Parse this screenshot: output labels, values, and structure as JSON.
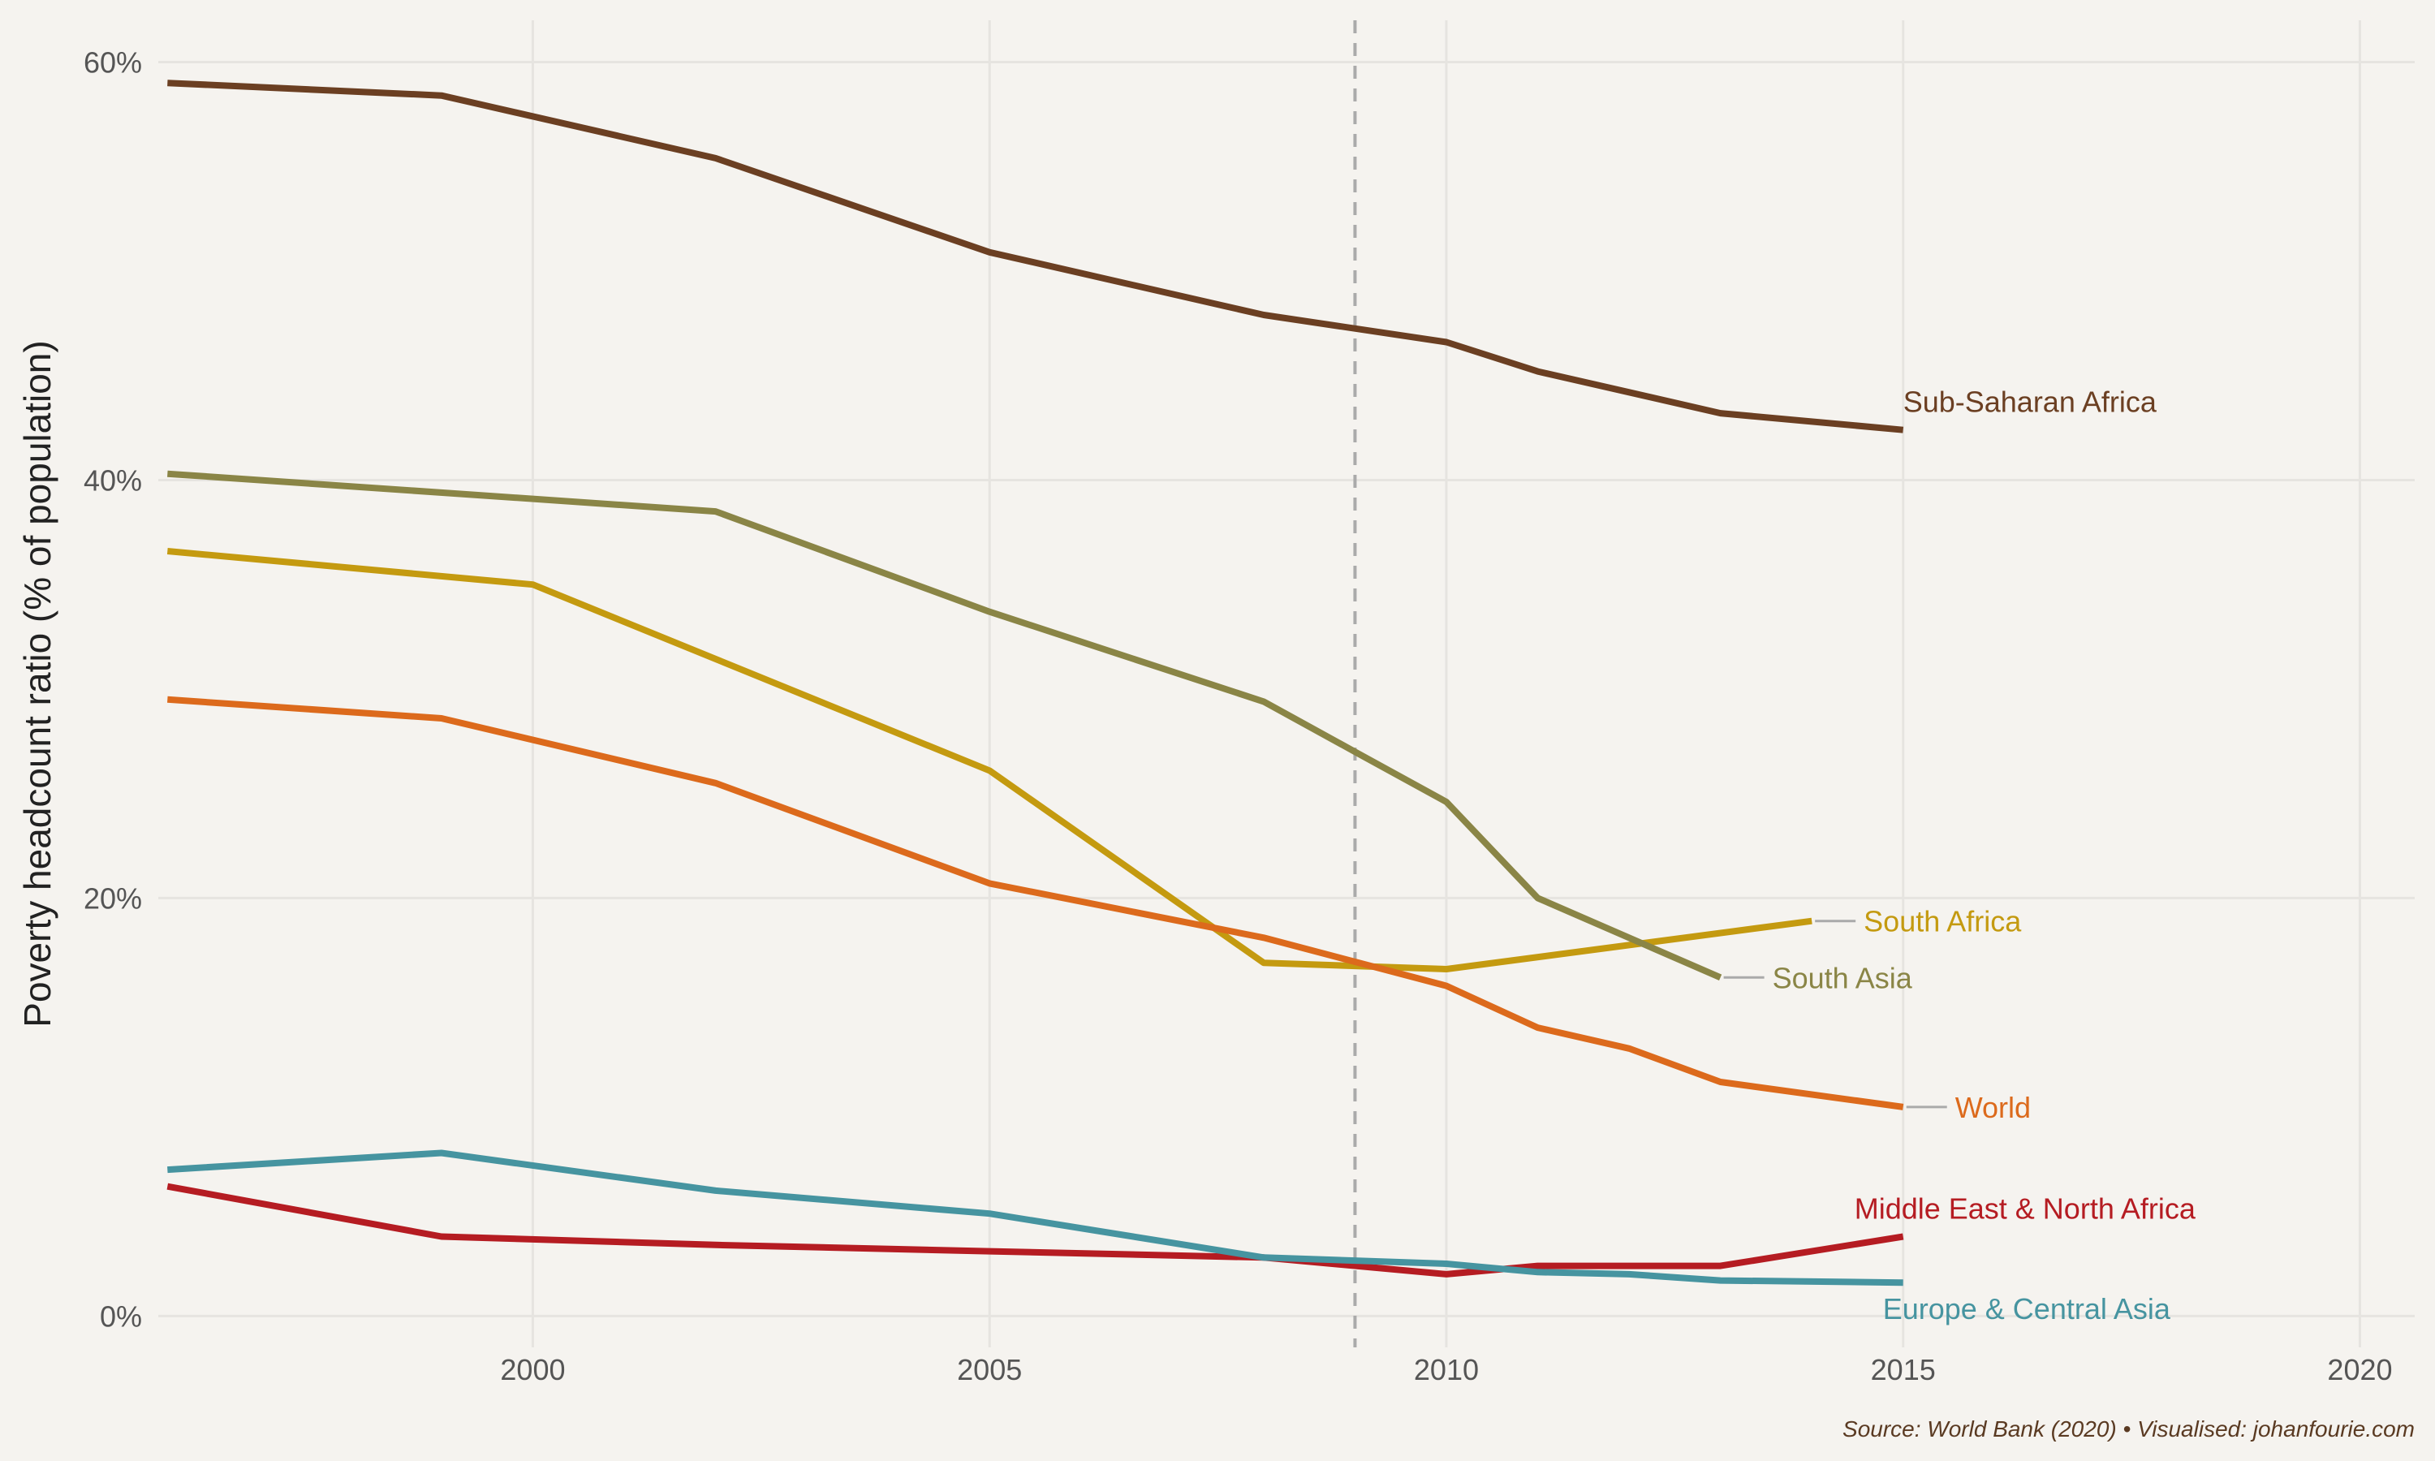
{
  "chart_data": {
    "type": "line",
    "title": "",
    "xlabel": "",
    "ylabel": "Poverty headcount ratio (% of population)",
    "xlim": [
      1995.9,
      2020.6
    ],
    "ylim": [
      -1.5,
      62
    ],
    "x_ticks": [
      2000,
      2005,
      2010,
      2015,
      2020
    ],
    "y_ticks": [
      0,
      20,
      40,
      60
    ],
    "y_tick_suffix": "%",
    "grid": true,
    "legend": "none (direct labels at line ends)",
    "reference_line": {
      "x": 2009,
      "style": "dashed",
      "color": "#aaaaaa"
    },
    "series": [
      {
        "name": "Sub-Saharan Africa",
        "color": "#6b3f22",
        "x": [
          1996,
          1999,
          2002,
          2005,
          2008,
          2010,
          2011,
          2012,
          2013,
          2015
        ],
        "y": [
          59.0,
          58.4,
          55.4,
          50.9,
          47.9,
          46.6,
          45.2,
          44.2,
          43.2,
          42.4
        ],
        "label_offset": "right-above"
      },
      {
        "name": "South Africa",
        "color": "#c49a10",
        "x": [
          1996,
          2000,
          2005,
          2008,
          2010,
          2014
        ],
        "y": [
          36.6,
          35.0,
          26.1,
          16.9,
          16.6,
          18.9
        ],
        "label_offset": "leader"
      },
      {
        "name": "South Asia",
        "color": "#8a8546",
        "x": [
          1996,
          2002,
          2005,
          2008,
          2009,
          2010,
          2011,
          2013
        ],
        "y": [
          40.3,
          38.5,
          33.7,
          29.4,
          27.0,
          24.6,
          20.0,
          16.2
        ],
        "label_offset": "leader"
      },
      {
        "name": "World",
        "color": "#dc6a1c",
        "x": [
          1996,
          1999,
          2002,
          2005,
          2008,
          2010,
          2011,
          2012,
          2013,
          2015
        ],
        "y": [
          29.5,
          28.6,
          25.5,
          20.7,
          18.1,
          15.8,
          13.8,
          12.8,
          11.2,
          10.0
        ],
        "label_offset": "leader"
      },
      {
        "name": "Middle East & North Africa",
        "color": "#b51c22",
        "x": [
          1996,
          1999,
          2002,
          2005,
          2008,
          2010,
          2011,
          2012,
          2013,
          2015
        ],
        "y": [
          6.2,
          3.8,
          3.4,
          3.1,
          2.8,
          2.0,
          2.4,
          2.4,
          2.4,
          3.8
        ],
        "label_offset": "above"
      },
      {
        "name": "Europe & Central Asia",
        "color": "#4694a0",
        "x": [
          1996,
          1999,
          2002,
          2005,
          2008,
          2010,
          2011,
          2012,
          2013,
          2015
        ],
        "y": [
          7.0,
          7.8,
          6.0,
          4.9,
          2.8,
          2.5,
          2.1,
          2.0,
          1.7,
          1.6
        ],
        "label_offset": "below"
      }
    ],
    "caption": "Source: World Bank (2020) • Visualised: johanfourie.com"
  }
}
